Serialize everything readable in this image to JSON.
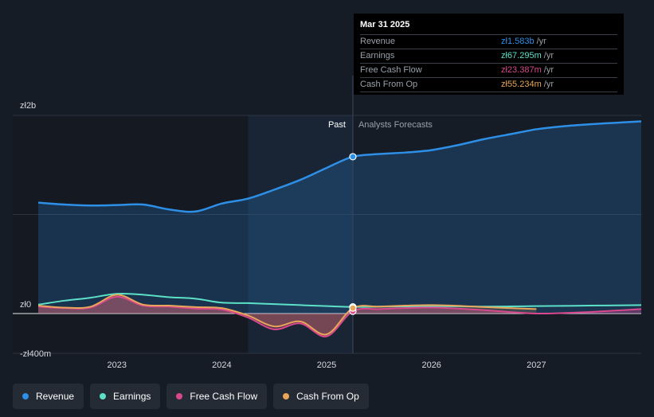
{
  "tooltip": {
    "date": "Mar 31 2025",
    "rows": [
      {
        "name": "Revenue",
        "value": "zł1.583b",
        "unit": "/yr",
        "color": "#2e8fe6"
      },
      {
        "name": "Earnings",
        "value": "zł67.295m",
        "unit": "/yr",
        "color": "#5de0c8"
      },
      {
        "name": "Free Cash Flow",
        "value": "zł23.387m",
        "unit": "/yr",
        "color": "#d9488c"
      },
      {
        "name": "Cash From Op",
        "value": "zł55.234m",
        "unit": "/yr",
        "color": "#e8a65a"
      }
    ]
  },
  "labels": {
    "past": "Past",
    "forecast": "Analysts Forecasts"
  },
  "legend": [
    {
      "label": "Revenue",
      "color": "#2e8fe6"
    },
    {
      "label": "Earnings",
      "color": "#5de0c8"
    },
    {
      "label": "Free Cash Flow",
      "color": "#d9488c"
    },
    {
      "label": "Cash From Op",
      "color": "#e8a65a"
    }
  ],
  "chart_data": {
    "type": "line",
    "y_ticks": [
      {
        "value": 2000,
        "label": "zł2b"
      },
      {
        "value": 0,
        "label": "zł0"
      },
      {
        "value": -400,
        "label": "-zł400m"
      }
    ],
    "x_ticks": [
      "2023",
      "2024",
      "2025",
      "2026",
      "2027"
    ],
    "ylim": [
      -400,
      2000
    ],
    "xlim": [
      2022.25,
      2028.0
    ],
    "past_end": 2025.25,
    "highlight_start": 2024.25,
    "units": "zł millions",
    "series": [
      {
        "name": "Revenue",
        "color": "#2e8fe6",
        "fill": true,
        "x": [
          2022.25,
          2022.5,
          2022.75,
          2023.0,
          2023.25,
          2023.5,
          2023.75,
          2024.0,
          2024.25,
          2024.5,
          2024.75,
          2025.0,
          2025.25,
          2025.5,
          2025.75,
          2026.0,
          2026.25,
          2026.5,
          2026.75,
          2027.0,
          2027.25,
          2027.5,
          2027.75,
          2028.0
        ],
        "y": [
          1120,
          1100,
          1090,
          1095,
          1100,
          1050,
          1030,
          1110,
          1160,
          1250,
          1350,
          1470,
          1583,
          1610,
          1625,
          1650,
          1700,
          1760,
          1810,
          1860,
          1890,
          1910,
          1925,
          1940
        ]
      },
      {
        "name": "Earnings",
        "color": "#5de0c8",
        "fill": false,
        "x": [
          2022.25,
          2022.5,
          2022.75,
          2023.0,
          2023.25,
          2023.5,
          2023.75,
          2024.0,
          2024.25,
          2024.5,
          2024.75,
          2025.0,
          2025.25,
          2025.5,
          2025.75,
          2026.0,
          2026.25,
          2026.5,
          2026.75,
          2027.0,
          2027.25,
          2027.5,
          2027.75,
          2028.0
        ],
        "y": [
          90,
          130,
          160,
          200,
          190,
          165,
          150,
          110,
          105,
          95,
          85,
          75,
          67,
          70,
          72,
          75,
          73,
          70,
          72,
          75,
          77,
          80,
          82,
          85
        ]
      },
      {
        "name": "Free Cash Flow",
        "color": "#d9488c",
        "fill": true,
        "x": [
          2022.25,
          2022.5,
          2022.75,
          2023.0,
          2023.25,
          2023.5,
          2023.75,
          2024.0,
          2024.25,
          2024.5,
          2024.75,
          2025.0,
          2025.25,
          2025.5,
          2025.75,
          2026.0,
          2026.25,
          2026.5,
          2026.75,
          2027.0,
          2027.25,
          2027.5,
          2027.75,
          2028.0
        ],
        "y": [
          70,
          55,
          60,
          170,
          80,
          70,
          50,
          40,
          -40,
          -160,
          -100,
          -230,
          23,
          45,
          55,
          60,
          50,
          35,
          15,
          0,
          5,
          15,
          30,
          45
        ]
      },
      {
        "name": "Cash From Op",
        "color": "#e8a65a",
        "fill": true,
        "x": [
          2022.25,
          2022.5,
          2022.75,
          2023.0,
          2023.25,
          2023.5,
          2023.75,
          2024.0,
          2024.25,
          2024.5,
          2024.75,
          2025.0,
          2025.25,
          2025.5,
          2025.75,
          2026.0,
          2026.25,
          2026.5,
          2026.75,
          2027.0
        ],
        "y": [
          80,
          60,
          70,
          190,
          90,
          80,
          65,
          55,
          -20,
          -130,
          -80,
          -210,
          55,
          70,
          80,
          85,
          78,
          65,
          55,
          45
        ]
      }
    ]
  }
}
